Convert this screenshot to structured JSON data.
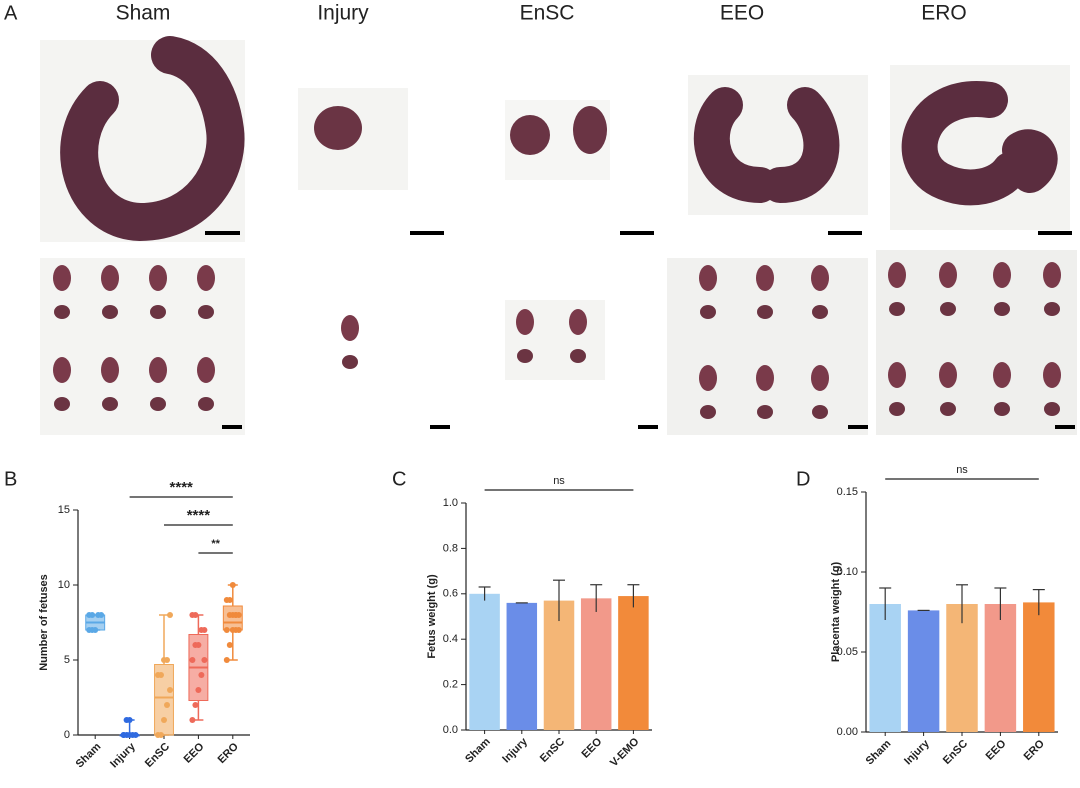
{
  "panel_a": {
    "label": "A",
    "groups": [
      "Sham",
      "Injury",
      "EnSC",
      "EEO",
      "ERO"
    ]
  },
  "chart_data": [
    {
      "type": "box",
      "panel": "B",
      "y_label": "Number of fetuses",
      "categories": [
        "Sham",
        "Injury",
        "EnSC",
        "EEO",
        "ERO"
      ],
      "boxes": [
        {
          "min": 7,
          "q1": 7,
          "median": 7.5,
          "q3": 8,
          "max": 8,
          "color": "#5aa8e6"
        },
        {
          "min": 0,
          "q1": 0,
          "median": 0,
          "q3": 0,
          "max": 1,
          "color": "#2f6ae0"
        },
        {
          "min": 0,
          "q1": 0,
          "median": 2.5,
          "q3": 4.7,
          "max": 8,
          "color": "#f0a85a"
        },
        {
          "min": 1,
          "q1": 2.3,
          "median": 4.5,
          "q3": 6.7,
          "max": 8,
          "color": "#ee6a5a"
        },
        {
          "min": 5,
          "q1": 7,
          "median": 7.5,
          "q3": 8.6,
          "max": 10,
          "color": "#f08a3c"
        }
      ],
      "points": [
        [
          7,
          7,
          7,
          8,
          8,
          8,
          8
        ],
        [
          0,
          0,
          0,
          0,
          0,
          0,
          1,
          1
        ],
        [
          0,
          0,
          1,
          2,
          3,
          4,
          4,
          5,
          5,
          8
        ],
        [
          1,
          2,
          3,
          4,
          5,
          5,
          6,
          6,
          7,
          7,
          8,
          8
        ],
        [
          5,
          6,
          7,
          7,
          7,
          7,
          8,
          8,
          8,
          8,
          9,
          9,
          10,
          8
        ]
      ],
      "ylim": [
        0,
        15
      ],
      "yticks": [
        0,
        5,
        10,
        15
      ],
      "annotations": [
        {
          "text": "****",
          "from": "Injury",
          "to": "ERO"
        },
        {
          "text": "****",
          "from": "EnSC",
          "to": "ERO"
        },
        {
          "text": "**",
          "from": "EEO",
          "to": "ERO"
        }
      ]
    },
    {
      "type": "bar",
      "panel": "C",
      "y_label": "Fetus weight (g)",
      "categories": [
        "Sham",
        "Injury",
        "EnSC",
        "EEO",
        "V-EMO"
      ],
      "values": [
        0.6,
        0.56,
        0.57,
        0.58,
        0.59
      ],
      "errors": [
        0.03,
        0,
        0.09,
        0.06,
        0.05
      ],
      "colors": [
        "#a9d3f3",
        "#6a8de8",
        "#f4b676",
        "#f2998a",
        "#f28a3a"
      ],
      "ylim": [
        0,
        1.0
      ],
      "yticks": [
        {
          "value": 0,
          "label": "0.0"
        },
        {
          "value": 0.2,
          "label": "0.2"
        },
        {
          "value": 0.4,
          "label": "0.4"
        },
        {
          "value": 0.6,
          "label": "0.6"
        },
        {
          "value": 0.8,
          "label": "0.8"
        },
        {
          "value": 1,
          "label": "1.0"
        }
      ],
      "annotations": [
        {
          "text": "ns",
          "from": "Sham",
          "to": "V-EMO"
        }
      ]
    },
    {
      "type": "bar",
      "panel": "D",
      "y_label": "Placenta weight (g)",
      "categories": [
        "Sham",
        "Injury",
        "EnSC",
        "EEO",
        "ERO"
      ],
      "values": [
        0.08,
        0.076,
        0.08,
        0.08,
        0.081
      ],
      "errors": [
        0.01,
        0,
        0.012,
        0.01,
        0.008
      ],
      "colors": [
        "#a9d3f3",
        "#6a8de8",
        "#f4b676",
        "#f2998a",
        "#f28a3a"
      ],
      "ylim": [
        0,
        0.15
      ],
      "yticks": [
        {
          "value": 0,
          "label": "0.00"
        },
        {
          "value": 0.05,
          "label": "0.05"
        },
        {
          "value": 0.1,
          "label": "0.10"
        },
        {
          "value": 0.15,
          "label": "0.15"
        }
      ],
      "annotations": [
        {
          "text": "ns",
          "from": "Sham",
          "to": "ERO"
        }
      ]
    }
  ]
}
